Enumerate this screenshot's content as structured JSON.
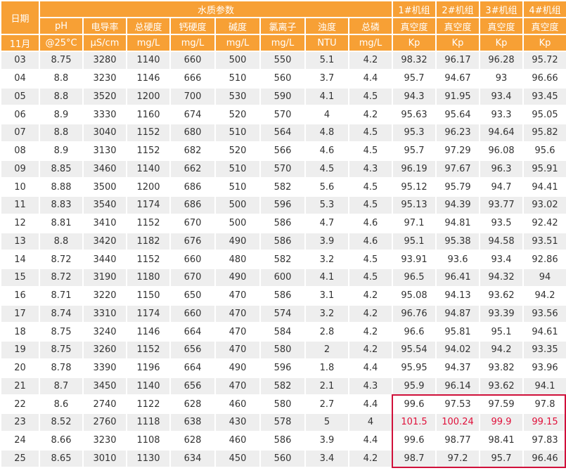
{
  "header": {
    "date_label": "日期",
    "water_group": "水质参数",
    "unit_groups": [
      "1#机组",
      "2#机组",
      "3#机组",
      "4#机组"
    ],
    "params": [
      "pH",
      "电导率",
      "总硬度",
      "钙硬度",
      "碱度",
      "氯离子",
      "浊度",
      "总磷",
      "真空度",
      "真空度",
      "真空度",
      "真空度"
    ],
    "month": "11月",
    "units": [
      "@25°C",
      "μS/cm",
      "mg/L",
      "mg/L",
      "mg/L",
      "mg/L",
      "NTU",
      "mg/L",
      "Kp",
      "Kp",
      "Kp",
      "Kp"
    ]
  },
  "rows": [
    [
      "03",
      "8.75",
      "3280",
      "1140",
      "660",
      "500",
      "550",
      "5.1",
      "4.2",
      "98.32",
      "96.17",
      "96.28",
      "95.72"
    ],
    [
      "04",
      "8.8",
      "3230",
      "1146",
      "666",
      "510",
      "560",
      "3.7",
      "4.4",
      "95.7",
      "94.67",
      "93",
      "96.66"
    ],
    [
      "05",
      "8.8",
      "3520",
      "1200",
      "700",
      "530",
      "590",
      "4.1",
      "4.5",
      "94.3",
      "91.95",
      "93.4",
      "93.45"
    ],
    [
      "06",
      "8.9",
      "3330",
      "1160",
      "674",
      "520",
      "570",
      "4",
      "4.2",
      "95.63",
      "95.64",
      "93.3",
      "95.05"
    ],
    [
      "07",
      "8.8",
      "3040",
      "1152",
      "680",
      "510",
      "564",
      "4.8",
      "4.5",
      "95.3",
      "96.23",
      "94.64",
      "95.82"
    ],
    [
      "08",
      "8.9",
      "3130",
      "1152",
      "682",
      "520",
      "566",
      "4.6",
      "4.5",
      "95.7",
      "97.29",
      "96.08",
      "95.6"
    ],
    [
      "09",
      "8.85",
      "3460",
      "1140",
      "662",
      "510",
      "570",
      "4.5",
      "4.3",
      "96.19",
      "97.67",
      "96.3",
      "95.91"
    ],
    [
      "10",
      "8.88",
      "3500",
      "1200",
      "686",
      "510",
      "582",
      "5.6",
      "4.5",
      "95.12",
      "95.79",
      "94.7",
      "94.41"
    ],
    [
      "11",
      "8.83",
      "3540",
      "1174",
      "686",
      "500",
      "596",
      "5.3",
      "4.5",
      "95.13",
      "94.39",
      "93.77",
      "93.02"
    ],
    [
      "12",
      "8.81",
      "3410",
      "1152",
      "670",
      "500",
      "586",
      "4.7",
      "4.6",
      "97.1",
      "94.81",
      "93.5",
      "92.42"
    ],
    [
      "13",
      "8.8",
      "3420",
      "1182",
      "676",
      "490",
      "586",
      "3.9",
      "4.6",
      "95.1",
      "95.38",
      "94.58",
      "93.51"
    ],
    [
      "14",
      "8.72",
      "3440",
      "1152",
      "660",
      "480",
      "582",
      "3.2",
      "4.5",
      "93.91",
      "93.6",
      "93.4",
      "92.86"
    ],
    [
      "15",
      "8.72",
      "3190",
      "1180",
      "670",
      "490",
      "600",
      "4.1",
      "4.5",
      "96.5",
      "96.41",
      "94.32",
      "94"
    ],
    [
      "16",
      "8.71",
      "3220",
      "1150",
      "650",
      "470",
      "586",
      "3.1",
      "4.2",
      "95.08",
      "94.13",
      "93.62",
      "94.2"
    ],
    [
      "17",
      "8.74",
      "3310",
      "1174",
      "660",
      "470",
      "574",
      "3.2",
      "4.2",
      "96.76",
      "94.87",
      "93.39",
      "93.56"
    ],
    [
      "18",
      "8.75",
      "3240",
      "1146",
      "664",
      "470",
      "584",
      "2.8",
      "4.2",
      "96.6",
      "95.81",
      "95.1",
      "94.61"
    ],
    [
      "19",
      "8.75",
      "3260",
      "1152",
      "656",
      "470",
      "580",
      "2",
      "4.2",
      "95.54",
      "94.02",
      "94.2",
      "93.35"
    ],
    [
      "20",
      "8.78",
      "3390",
      "1196",
      "664",
      "490",
      "596",
      "1.8",
      "4.4",
      "95.95",
      "94.37",
      "93.82",
      "93.96"
    ],
    [
      "21",
      "8.7",
      "3450",
      "1140",
      "656",
      "470",
      "582",
      "2.1",
      "4.3",
      "95.9",
      "96.14",
      "93.62",
      "94.1"
    ],
    [
      "22",
      "8.6",
      "2740",
      "1122",
      "628",
      "460",
      "580",
      "2.7",
      "4.4",
      "99.6",
      "97.53",
      "97.59",
      "97.8"
    ],
    [
      "23",
      "8.52",
      "2760",
      "1118",
      "638",
      "430",
      "578",
      "5",
      "4",
      "101.5",
      "100.24",
      "99.9",
      "99.15"
    ],
    [
      "24",
      "8.66",
      "3230",
      "1108",
      "628",
      "460",
      "586",
      "3.9",
      "4.4",
      "99.6",
      "98.77",
      "98.41",
      "97.83"
    ],
    [
      "25",
      "8.65",
      "3010",
      "1130",
      "634",
      "450",
      "560",
      "3.4",
      "4.2",
      "98.7",
      "97.2",
      "95.7",
      "96.46"
    ]
  ],
  "highlight": {
    "rows": [
      "22",
      "23",
      "24",
      "25"
    ],
    "red_row": "23",
    "box_color": "#d0103a",
    "text_color": "#e0103a"
  },
  "colors": {
    "header_bg": "#f7a035",
    "header_text": "#ffffff",
    "stripe": "#eeeeee"
  }
}
